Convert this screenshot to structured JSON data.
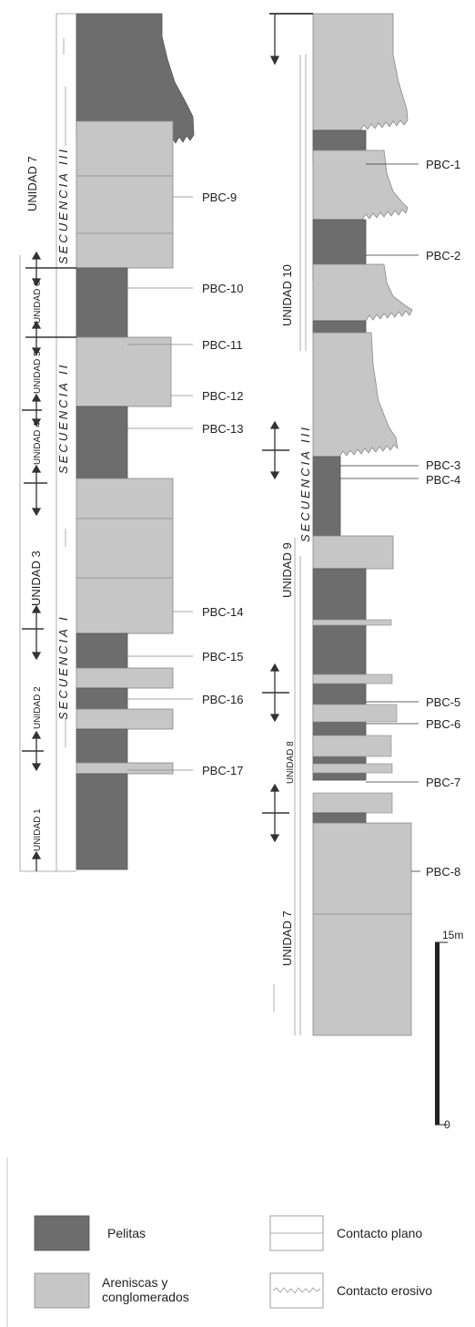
{
  "samples_left": [
    "PBC-9",
    "PBC-10",
    "PBC-11",
    "PBC-12",
    "PBC-13",
    "PBC-14",
    "PBC-15",
    "PBC-16",
    "PBC-17"
  ],
  "samples_right": [
    "PBC-1",
    "PBC-2",
    "PBC-3",
    "PBC-4",
    "PBC-5",
    "PBC-6",
    "PBC-7",
    "PBC-8"
  ],
  "units_left": [
    "UNIDAD 7",
    "UNIDAD 6",
    "UNIDAD 5",
    "UNIDAD 4",
    "UNIDAD 3",
    "UNIDAD 2",
    "UNIDAD 1"
  ],
  "units_right": [
    "UNIDAD 10",
    "UNIDAD 9",
    "UNIDAD 8",
    "UNIDAD 7"
  ],
  "sequences_left": [
    "SECUENCIA III",
    "SECUENCIA II",
    "SECUENCIA I"
  ],
  "sequences_right": [
    "SECUENCIA III"
  ],
  "scale": {
    "top": "15m",
    "bottom": "0"
  },
  "legend": {
    "pelitas": "Pelitas",
    "areniscas_line1": "Areniscas y",
    "areniscas_line2": "conglomerados",
    "plano": "Contacto plano",
    "erosivo": "Contacto erosivo"
  },
  "colors": {
    "pelitas": "#6d6d6d",
    "areniscas": "#c6c6c6",
    "outline": "#7a7a7a"
  }
}
